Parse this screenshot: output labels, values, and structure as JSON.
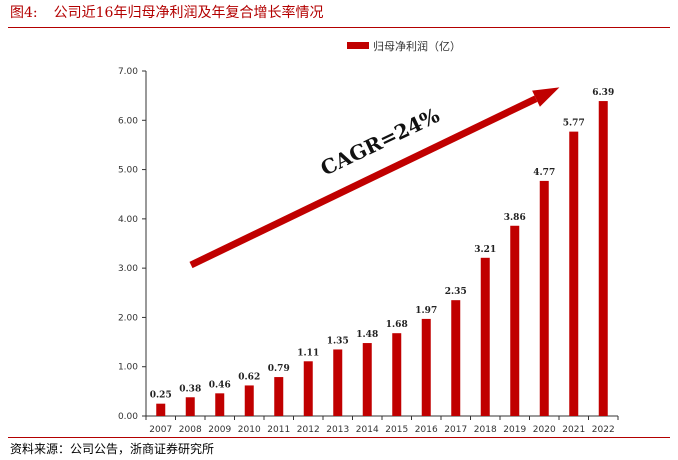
{
  "figure": {
    "number": "图4:",
    "title": "公司近16年归母净利润及年复合增长率情况",
    "source": "资料来源：公司公告，浙商证券研究所"
  },
  "chart_data": {
    "type": "bar",
    "categories": [
      "2007",
      "2008",
      "2009",
      "2010",
      "2011",
      "2012",
      "2013",
      "2014",
      "2015",
      "2016",
      "2017",
      "2018",
      "2019",
      "2020",
      "2021",
      "2022"
    ],
    "series": [
      {
        "name": "归母净利润（亿）",
        "values": [
          0.25,
          0.38,
          0.46,
          0.62,
          0.79,
          1.11,
          1.35,
          1.48,
          1.68,
          1.97,
          2.35,
          3.21,
          3.86,
          4.77,
          5.77,
          6.39
        ],
        "labels": [
          "0.25",
          "0.38",
          "0.46",
          "0.62",
          "0.79",
          "1.11",
          "1.35",
          "1.48",
          "1.68",
          "1.97",
          "2.35",
          "3.21",
          "3.86",
          "4.77",
          "5.77",
          "6.39"
        ],
        "color": "#c00000"
      }
    ],
    "ylim": [
      0,
      7
    ],
    "yticks": [
      0,
      1,
      2,
      3,
      4,
      5,
      6,
      7
    ],
    "ytick_labels": [
      "0.00",
      "1.00",
      "2.00",
      "3.00",
      "4.00",
      "5.00",
      "6.00",
      "7.00"
    ],
    "legend_position": "top-center",
    "grid": false,
    "annotation": {
      "text": "CAGR=24%",
      "arrow_color": "#c00000"
    }
  }
}
